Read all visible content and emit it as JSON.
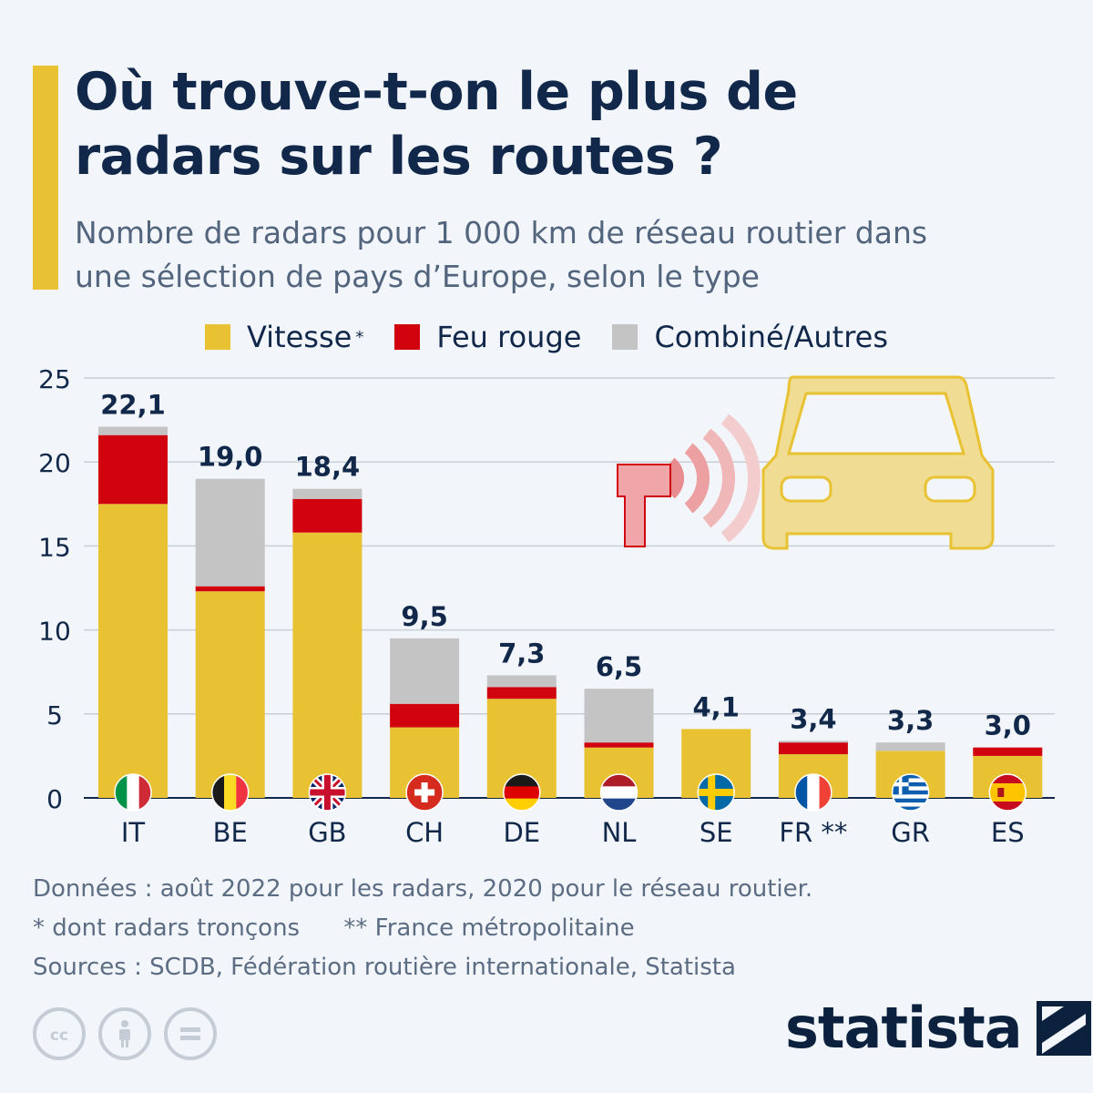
{
  "header": {
    "title_line1": "Où trouve-t-on le plus de",
    "title_line2": "radars sur les routes ?",
    "subtitle_line1": "Nombre de radars pour 1 000 km de réseau routier dans",
    "subtitle_line2": "une sélection de pays d’Europe, selon le type"
  },
  "legend": {
    "speed_label": "Vitesse",
    "speed_marker": "*",
    "redlight_label": "Feu rouge",
    "other_label": "Combiné/Autres"
  },
  "colors": {
    "speed": "#e8c232",
    "redlight": "#d0030f",
    "other": "#c4c4c4",
    "accent": "#e8c232",
    "text": "#11284a"
  },
  "chart_data": {
    "type": "bar",
    "stacked": true,
    "categories": [
      "IT",
      "BE",
      "GB",
      "CH",
      "DE",
      "NL",
      "SE",
      "FR **",
      "GR",
      "ES"
    ],
    "series": [
      {
        "name": "Vitesse *",
        "color": "#e8c232",
        "values": [
          17.5,
          12.3,
          15.8,
          4.2,
          5.9,
          3.0,
          4.1,
          2.6,
          2.8,
          2.5
        ]
      },
      {
        "name": "Feu rouge",
        "color": "#d0030f",
        "values": [
          4.1,
          0.3,
          2.0,
          1.4,
          0.7,
          0.3,
          0.0,
          0.7,
          0.0,
          0.5
        ]
      },
      {
        "name": "Combiné/Autres",
        "color": "#c4c4c4",
        "values": [
          0.5,
          6.4,
          0.6,
          3.9,
          0.7,
          3.2,
          0.0,
          0.1,
          0.5,
          0.0
        ]
      }
    ],
    "totals": [
      "22,1",
      "19,0",
      "18,4",
      "9,5",
      "7,3",
      "6,5",
      "4,1",
      "3,4",
      "3,3",
      "3,0"
    ],
    "flag_icons": [
      "italy-flag",
      "belgium-flag",
      "uk-flag",
      "switzerland-flag",
      "germany-flag",
      "netherlands-flag",
      "sweden-flag",
      "france-flag",
      "greece-flag",
      "spain-flag"
    ],
    "ylim": [
      0,
      25
    ],
    "yticks": [
      0,
      5,
      10,
      15,
      20,
      25
    ],
    "grid": true,
    "legend_position": "top"
  },
  "footer": {
    "data_note": "Données : août 2022 pour les radars, 2020 pour le réseau routier.",
    "note_speed": "* dont radars tronçons",
    "note_france": "** France métropolitaine",
    "sources": "Sources : SCDB, Fédération routière internationale, Statista"
  },
  "license_icons": [
    "cc-icon",
    "attribution-icon",
    "no-derivatives-icon"
  ],
  "brand": {
    "name": "statista"
  }
}
